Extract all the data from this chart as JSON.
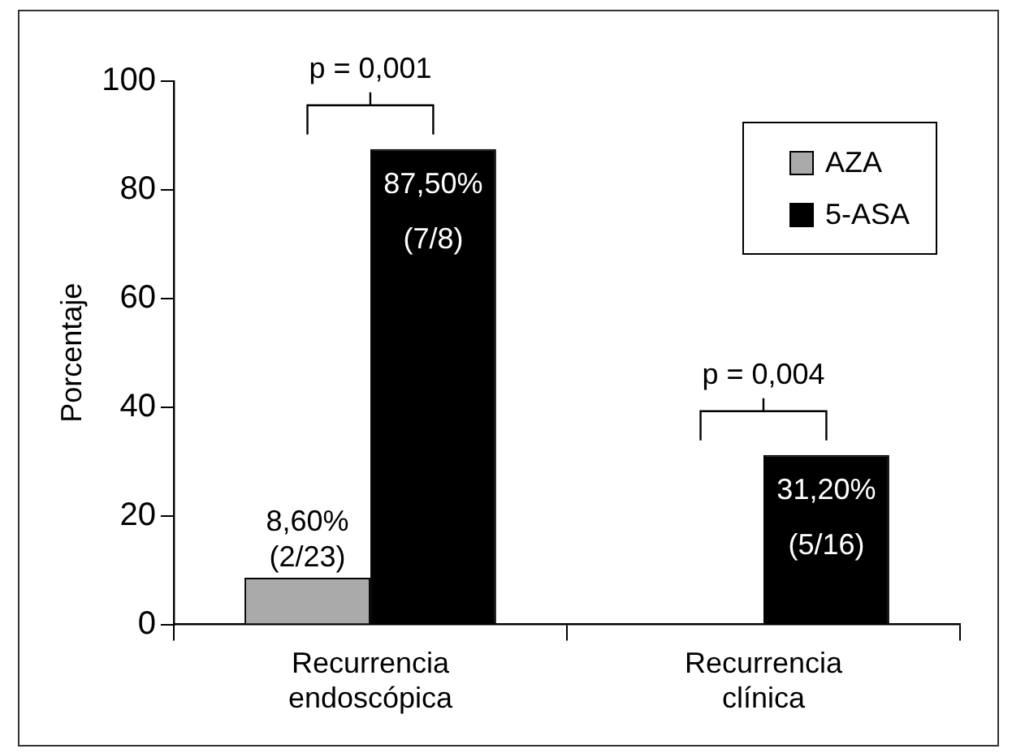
{
  "chart_data": {
    "type": "bar",
    "ylabel": "Porcentaje",
    "categories": [
      "Recurrencia\nendoscópica",
      "Recurrencia\nclínica"
    ],
    "series": [
      {
        "name": "AZA",
        "color": "#aaaaaa",
        "values": [
          8.6,
          0
        ],
        "value_labels": [
          "8,60%\n(2/23)",
          null
        ]
      },
      {
        "name": "5-ASA",
        "color": "#000000",
        "values": [
          87.5,
          31.2
        ],
        "value_labels": [
          "87,50%\n(7/8)",
          "31,20%\n(5/16)"
        ]
      }
    ],
    "ylim": [
      0,
      100
    ],
    "yticks": [
      0,
      20,
      40,
      60,
      80,
      100
    ],
    "grid": false,
    "legend": "top right",
    "annotations": [
      "p = 0,001",
      "p = 0,004"
    ]
  }
}
